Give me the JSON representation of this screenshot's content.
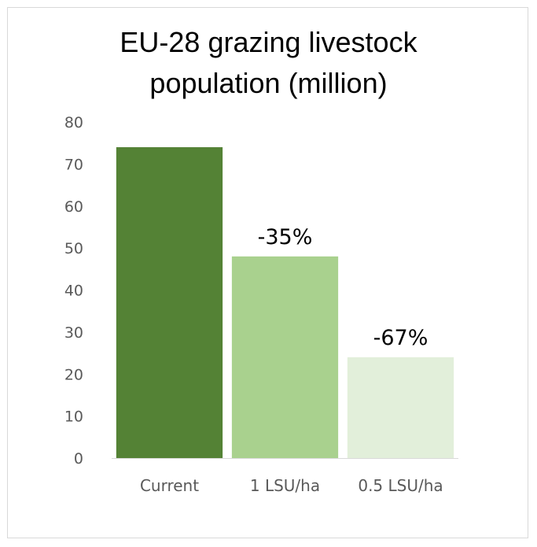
{
  "chart_data": {
    "type": "bar",
    "title": "EU-28 grazing livestock population (million)",
    "title_lines": [
      "EU-28 grazing livestock",
      "population (million)"
    ],
    "categories": [
      "Current",
      "1 LSU/ha",
      "0.5 LSU/ha"
    ],
    "values": [
      74,
      48,
      24
    ],
    "data_labels": [
      "",
      "-35%",
      "-67%"
    ],
    "bar_colors": [
      "#548235",
      "#a9d18e",
      "#e2efda"
    ],
    "ylim": [
      0,
      80
    ],
    "yticks": [
      "0",
      "10",
      "20",
      "30",
      "40",
      "50",
      "60",
      "70",
      "80"
    ],
    "grid": false,
    "legend": "none",
    "xlabel": "",
    "ylabel": ""
  }
}
